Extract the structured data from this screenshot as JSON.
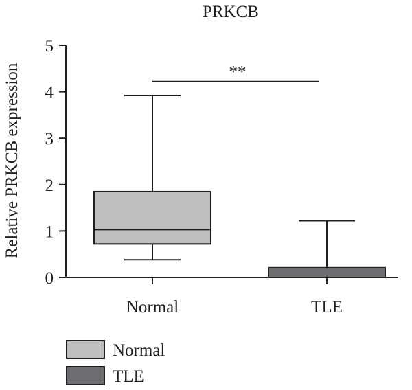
{
  "chart_data": {
    "type": "box",
    "title": "PRKCB",
    "ylabel": "Relative PRKCB expression",
    "xlabel": "",
    "ylim": [
      0,
      5
    ],
    "yticks": [
      "0",
      "1",
      "2",
      "3",
      "4",
      "5"
    ],
    "categories": [
      "Normal",
      "TLE"
    ],
    "series": [
      {
        "name": "Normal",
        "color": "#bcbec0",
        "min": 0.38,
        "q1": 0.72,
        "median": 1.03,
        "q3": 1.85,
        "max": 3.92
      },
      {
        "name": "TLE",
        "color": "#6d6e71",
        "min": 0.0,
        "q1": 0.0,
        "median": 0.0,
        "q3": 0.21,
        "max": 1.22
      }
    ],
    "significance": {
      "label": "**",
      "between": [
        "Normal",
        "TLE"
      ],
      "y": 4.22
    },
    "legend": {
      "position": "bottom-left",
      "entries": [
        "Normal",
        "TLE"
      ]
    }
  }
}
